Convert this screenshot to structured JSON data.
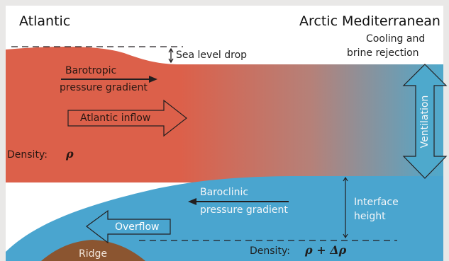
{
  "labels": {
    "atlantic": "Atlantic",
    "arctic_mediterranean": "Arctic Mediterranean",
    "sea_level_drop": "Sea level drop",
    "cooling": "Cooling and",
    "brine": "brine rejection",
    "barotropic_1": "Barotropic",
    "barotropic_2": "pressure gradient",
    "atlantic_inflow": "Atlantic inflow",
    "ventilation": "Ventilation",
    "density_top": "Density:",
    "density_top_symbol": "ρ",
    "baroclinic_1": "Baroclinic",
    "baroclinic_2": "pressure gradient",
    "interface_1": "Interface",
    "interface_2": "height",
    "overflow": "Overflow",
    "ridge": "Ridge",
    "density_bottom": "Density:",
    "density_bottom_symbol": "ρ + Δρ"
  },
  "colors": {
    "frame": "#e9e8e7",
    "sky": "#ffffff",
    "atlantic_water": "#dc604a",
    "arctic_water_surface": "#4ea9cc",
    "deep_water": "#4aa5cf",
    "ridge": "#8b5530",
    "arrow": "#231f20"
  },
  "icons": {
    "inflow_arrow": "hollow-right-arrow-icon",
    "overflow_arrow": "hollow-left-arrow-icon",
    "ventilation_arrow": "double-headed-vertical-arrow-icon"
  }
}
